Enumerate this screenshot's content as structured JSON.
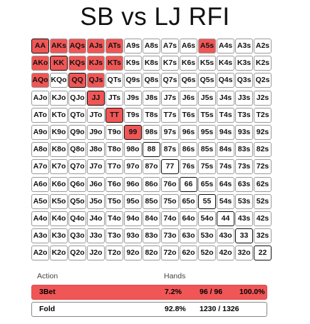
{
  "title": "SB vs LJ RFI",
  "grid": {
    "rows": [
      [
        "AA",
        "AKs",
        "AQs",
        "AJs",
        "ATs",
        "A9s",
        "A8s",
        "A7s",
        "A6s",
        "A5s",
        "A4s",
        "A3s",
        "A2s"
      ],
      [
        "AKo",
        "KK",
        "KQs",
        "KJs",
        "KTs",
        "K9s",
        "K8s",
        "K7s",
        "K6s",
        "K5s",
        "K4s",
        "K3s",
        "K2s"
      ],
      [
        "AQo",
        "KQo",
        "QQ",
        "QJs",
        "QTs",
        "Q9s",
        "Q8s",
        "Q7s",
        "Q6s",
        "Q5s",
        "Q4s",
        "Q3s",
        "Q2s"
      ],
      [
        "AJo",
        "KJo",
        "QJo",
        "JJ",
        "JTs",
        "J9s",
        "J8s",
        "J7s",
        "J6s",
        "J5s",
        "J4s",
        "J3s",
        "J2s"
      ],
      [
        "ATo",
        "KTo",
        "QTo",
        "JTo",
        "TT",
        "T9s",
        "T8s",
        "T7s",
        "T6s",
        "T5s",
        "T4s",
        "T3s",
        "T2s"
      ],
      [
        "A9o",
        "K9o",
        "Q9o",
        "J9o",
        "T9o",
        "99",
        "98s",
        "97s",
        "96s",
        "95s",
        "94s",
        "93s",
        "92s"
      ],
      [
        "A8o",
        "K8o",
        "Q8o",
        "J8o",
        "T8o",
        "98o",
        "88",
        "87s",
        "86s",
        "85s",
        "84s",
        "83s",
        "82s"
      ],
      [
        "A7o",
        "K7o",
        "Q7o",
        "J7o",
        "T7o",
        "97o",
        "87o",
        "77",
        "76s",
        "75s",
        "74s",
        "73s",
        "72s"
      ],
      [
        "A6o",
        "K6o",
        "Q6o",
        "J6o",
        "T6o",
        "96o",
        "86o",
        "76o",
        "66",
        "65s",
        "64s",
        "63s",
        "62s"
      ],
      [
        "A5o",
        "K5o",
        "Q5o",
        "J5o",
        "T5o",
        "95o",
        "85o",
        "75o",
        "65o",
        "55",
        "54s",
        "53s",
        "52s"
      ],
      [
        "A4o",
        "K4o",
        "Q4o",
        "J4o",
        "T4o",
        "94o",
        "84o",
        "74o",
        "64o",
        "54o",
        "44",
        "43s",
        "42s"
      ],
      [
        "A3o",
        "K3o",
        "Q3o",
        "J3o",
        "T3o",
        "93o",
        "83o",
        "73o",
        "63o",
        "53o",
        "43o",
        "33",
        "32s"
      ],
      [
        "A2o",
        "K2o",
        "Q2o",
        "J2o",
        "T2o",
        "92o",
        "82o",
        "72o",
        "62o",
        "52o",
        "42o",
        "32o",
        "22"
      ]
    ],
    "highlighted": [
      "AA",
      "AKs",
      "AQs",
      "AJs",
      "ATs",
      "A5s",
      "AKo",
      "KK",
      "KQs",
      "KJs",
      "KTs",
      "AQo",
      "QQ",
      "QJs",
      "JJ",
      "TT",
      "99"
    ],
    "highlight_color": "#f05656"
  },
  "table": {
    "action_header": "Action",
    "hands_header": "Hands",
    "rows": [
      {
        "action": "3Bet",
        "pct": "7.2%",
        "combos": "96 / 96",
        "freq": "100.0%"
      },
      {
        "action": "Fold",
        "pct": "92.8%",
        "combos": "1230 / 1326",
        "freq": ""
      }
    ]
  }
}
